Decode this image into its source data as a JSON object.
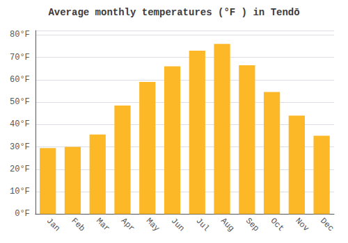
{
  "chart_data": {
    "type": "bar",
    "title": "Average monthly temperatures (°F ) in Tendō",
    "categories": [
      "Jan",
      "Feb",
      "Mar",
      "Apr",
      "May",
      "Jun",
      "Jul",
      "Aug",
      "Sep",
      "Oct",
      "Nov",
      "Dec"
    ],
    "values": [
      29.5,
      30.0,
      35.5,
      48.5,
      59.0,
      66.0,
      73.0,
      76.0,
      66.5,
      54.5,
      44.0,
      35.0
    ],
    "color": "#FDB827",
    "ylim": [
      0,
      82
    ],
    "yticks": [
      {
        "value": 0,
        "label": "0°F"
      },
      {
        "value": 10,
        "label": "10°F"
      },
      {
        "value": 20,
        "label": "20°F"
      },
      {
        "value": 30,
        "label": "30°F"
      },
      {
        "value": 40,
        "label": "40°F"
      },
      {
        "value": 50,
        "label": "50°F"
      },
      {
        "value": 60,
        "label": "60°F"
      },
      {
        "value": 70,
        "label": "70°F"
      },
      {
        "value": 80,
        "label": "80°F"
      }
    ],
    "grid": true
  }
}
